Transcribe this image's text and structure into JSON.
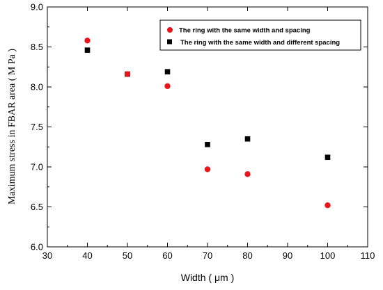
{
  "chart_data": {
    "type": "scatter",
    "xlabel": "Width ( μm )",
    "ylabel": "Maximum stress in FBAR area ( M Pa )",
    "xlim": [
      30,
      110
    ],
    "ylim": [
      6.0,
      9.0
    ],
    "xticks": [
      "30",
      "40",
      "50",
      "60",
      "70",
      "80",
      "90",
      "100",
      "110"
    ],
    "yticks": [
      "6.0",
      "6.5",
      "7.0",
      "7.5",
      "8.0",
      "8.5",
      "9.0"
    ],
    "legend_position": "top-right",
    "grid": false,
    "series": [
      {
        "name": "The ring  with the same width and spacing",
        "marker": "circle",
        "color": "#e8161b",
        "x": [
          40,
          50,
          60,
          70,
          80,
          100
        ],
        "y": [
          8.58,
          8.16,
          8.01,
          6.97,
          6.91,
          6.52
        ]
      },
      {
        "name": "The ring  with the same width and different spacing",
        "marker": "square",
        "color": "#000000",
        "x": [
          40,
          50,
          60,
          70,
          80,
          100
        ],
        "y": [
          8.46,
          8.16,
          8.19,
          7.28,
          7.35,
          7.12
        ]
      }
    ]
  }
}
